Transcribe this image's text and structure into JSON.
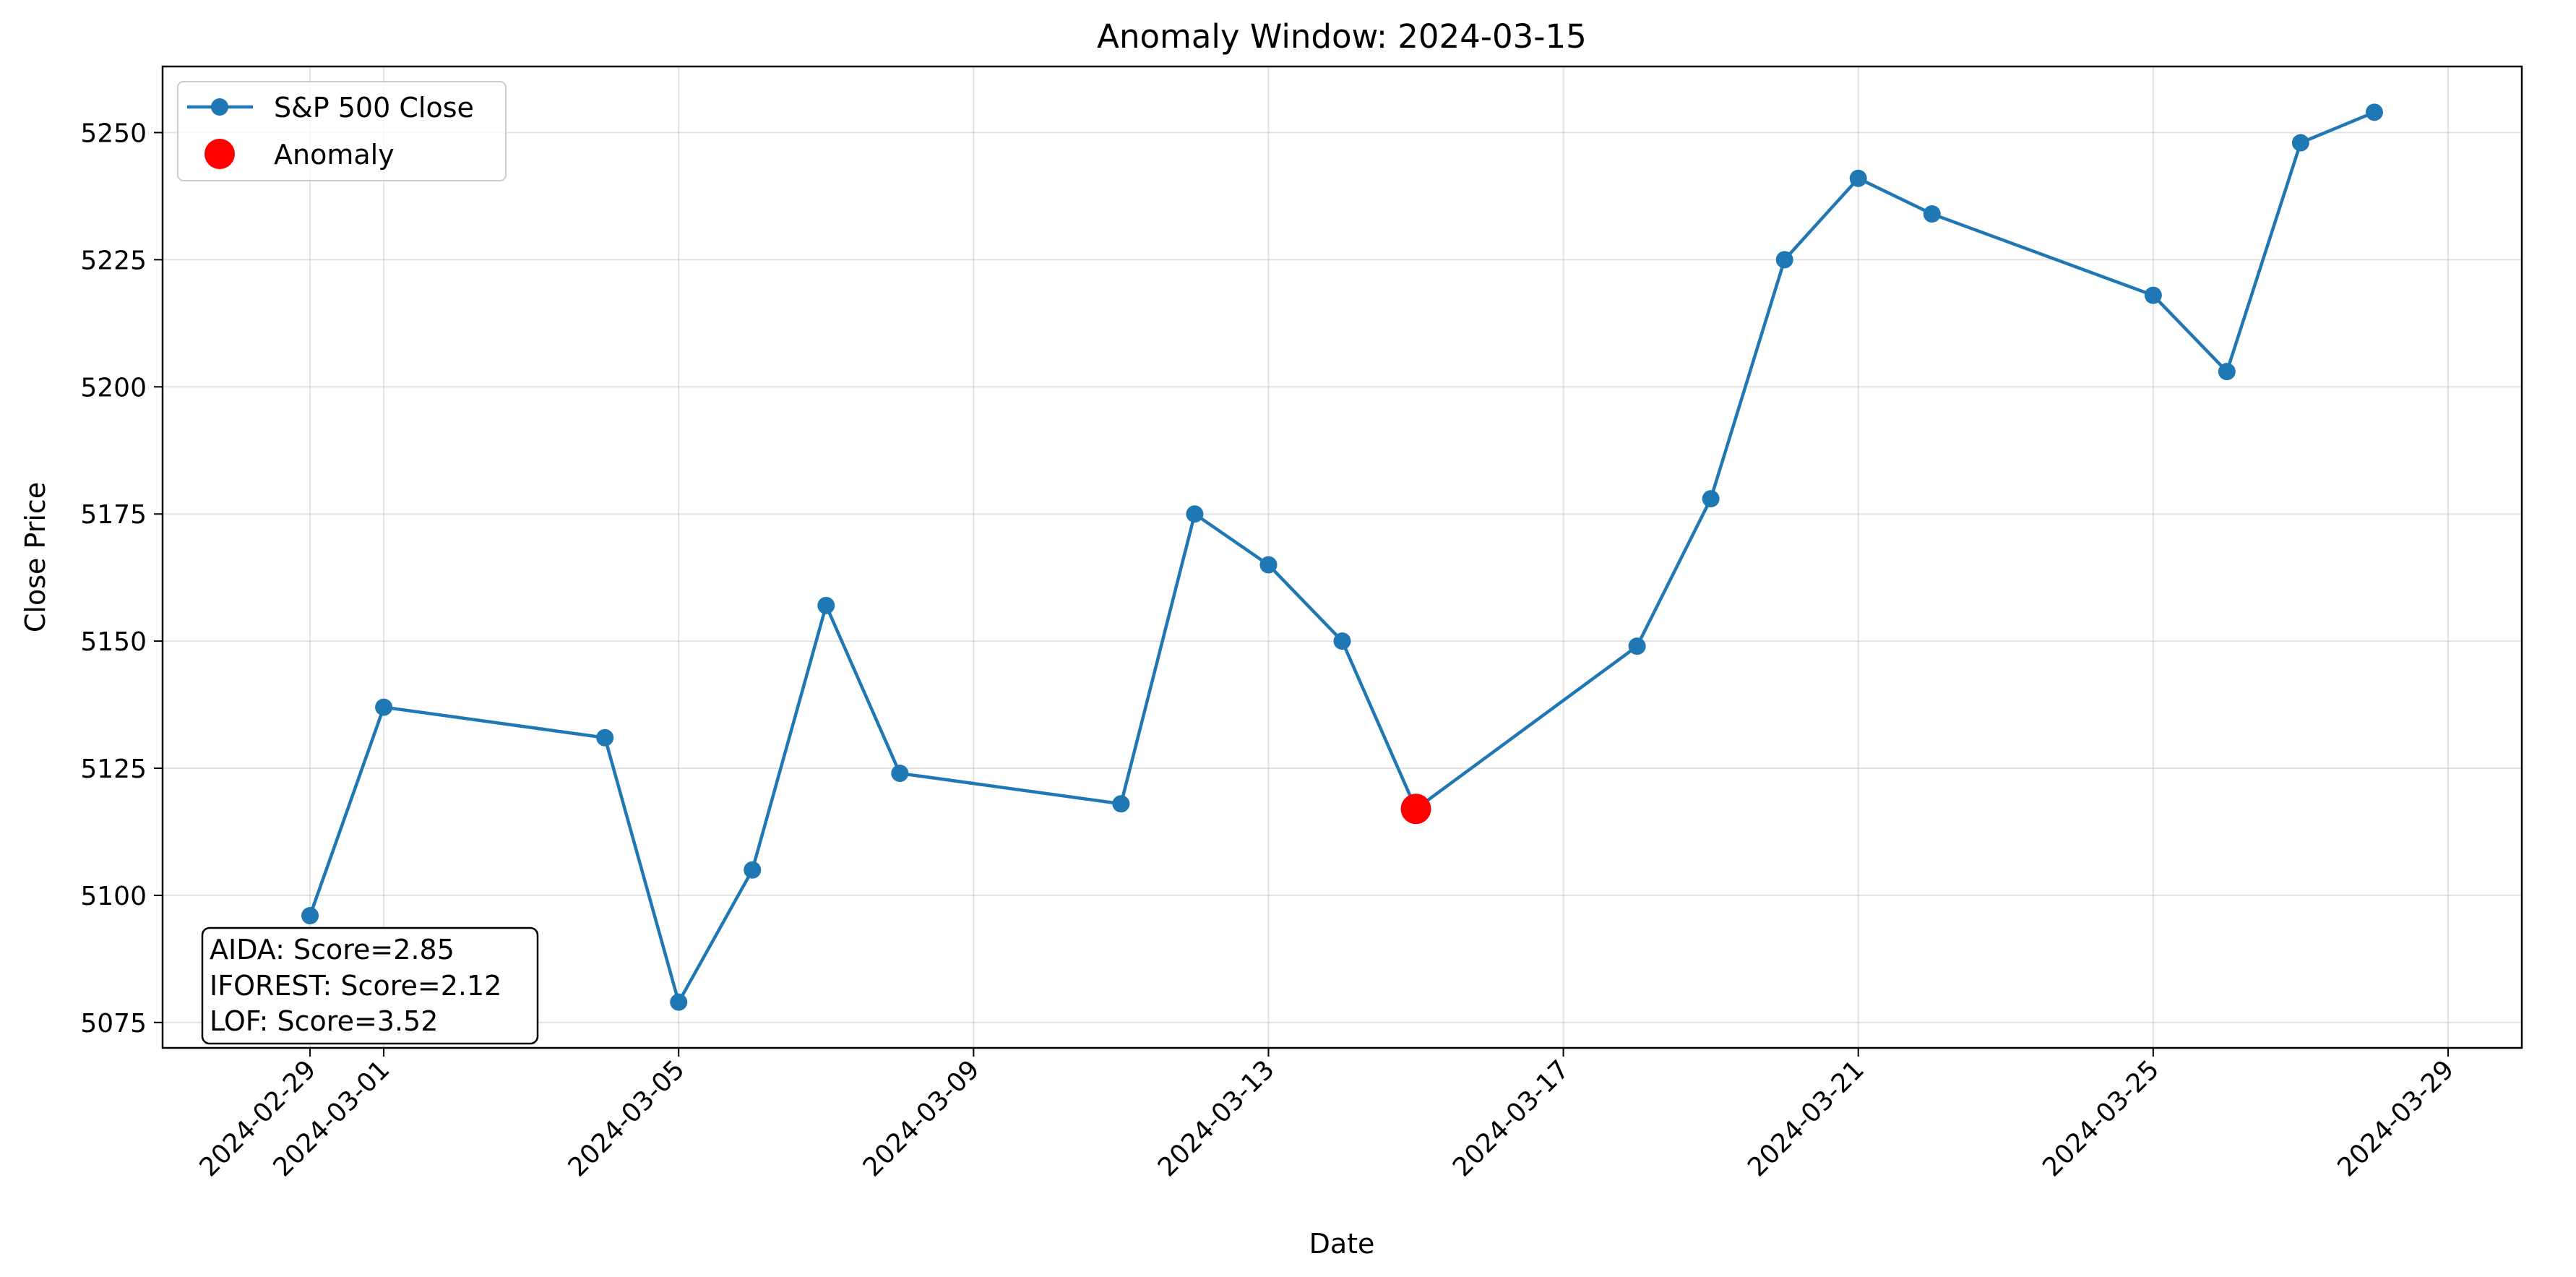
{
  "chart_data": {
    "type": "line",
    "title": "Anomaly Window: 2024-03-15",
    "xlabel": "Date",
    "ylabel": "Close Price",
    "xlim": [
      "2024-02-27",
      "2024-03-30"
    ],
    "ylim": [
      5070,
      5263
    ],
    "grid": true,
    "legend_position": "top-left",
    "x_ticks": [
      "2024-02-29",
      "2024-03-01",
      "2024-03-05",
      "2024-03-09",
      "2024-03-13",
      "2024-03-17",
      "2024-03-21",
      "2024-03-25",
      "2024-03-29"
    ],
    "y_ticks": [
      5075,
      5100,
      5125,
      5150,
      5175,
      5200,
      5225,
      5250
    ],
    "series": [
      {
        "name": "S&P 500 Close",
        "color": "#1f77b4",
        "points": [
          {
            "x": "2024-02-29",
            "y": 5096
          },
          {
            "x": "2024-03-01",
            "y": 5137
          },
          {
            "x": "2024-03-04",
            "y": 5131
          },
          {
            "x": "2024-03-05",
            "y": 5079
          },
          {
            "x": "2024-03-06",
            "y": 5105
          },
          {
            "x": "2024-03-07",
            "y": 5157
          },
          {
            "x": "2024-03-08",
            "y": 5124
          },
          {
            "x": "2024-03-11",
            "y": 5118
          },
          {
            "x": "2024-03-12",
            "y": 5175
          },
          {
            "x": "2024-03-13",
            "y": 5165
          },
          {
            "x": "2024-03-14",
            "y": 5150
          },
          {
            "x": "2024-03-15",
            "y": 5117
          },
          {
            "x": "2024-03-18",
            "y": 5149
          },
          {
            "x": "2024-03-19",
            "y": 5178
          },
          {
            "x": "2024-03-20",
            "y": 5225
          },
          {
            "x": "2024-03-21",
            "y": 5241
          },
          {
            "x": "2024-03-22",
            "y": 5234
          },
          {
            "x": "2024-03-25",
            "y": 5218
          },
          {
            "x": "2024-03-26",
            "y": 5203
          },
          {
            "x": "2024-03-27",
            "y": 5248
          },
          {
            "x": "2024-03-28",
            "y": 5254
          }
        ]
      },
      {
        "name": "Anomaly",
        "color": "#ff0000",
        "points": [
          {
            "x": "2024-03-15",
            "y": 5117
          }
        ]
      }
    ],
    "annotations": [
      "AIDA: Score=2.85",
      "IFOREST: Score=2.12",
      "LOF: Score=3.52"
    ]
  }
}
